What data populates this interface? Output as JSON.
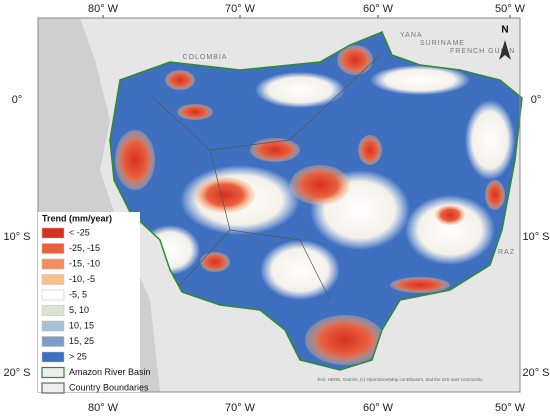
{
  "lon_labels": [
    "80° W",
    "70° W",
    "60° W",
    "50° W"
  ],
  "lat_labels": [
    "0°",
    "10° S",
    "20° S"
  ],
  "place_labels": [
    "COLOMBIA",
    "YANA",
    "SURINAME",
    "FRENCH GUIAN",
    "RAZ"
  ],
  "north": "N",
  "legend": {
    "title": "Trend (mm/year)",
    "items": [
      {
        "label": "< -25",
        "color": "#d7301f"
      },
      {
        "label": "-25, -15",
        "color": "#e9603f"
      },
      {
        "label": "-15, -10",
        "color": "#f48c5f"
      },
      {
        "label": "-10, -5",
        "color": "#fbbf8a"
      },
      {
        "label": "-5, 5",
        "color": "#ffffff"
      },
      {
        "label": "5, 10",
        "color": "#dbe3d2"
      },
      {
        "label": "10, 15",
        "color": "#a9bfd2"
      },
      {
        "label": "15, 25",
        "color": "#7c9dc9"
      },
      {
        "label": "> 25",
        "color": "#3f6fbf"
      }
    ],
    "outlines": [
      {
        "label": "Amazon River Basin",
        "color": "#2e8b2e"
      },
      {
        "label": "Country Boundaries",
        "color": "#666666"
      }
    ]
  },
  "attribution": "Esri, HERE, Garmin, (c) OpenStreetMap contributors, and the GIS user community"
}
